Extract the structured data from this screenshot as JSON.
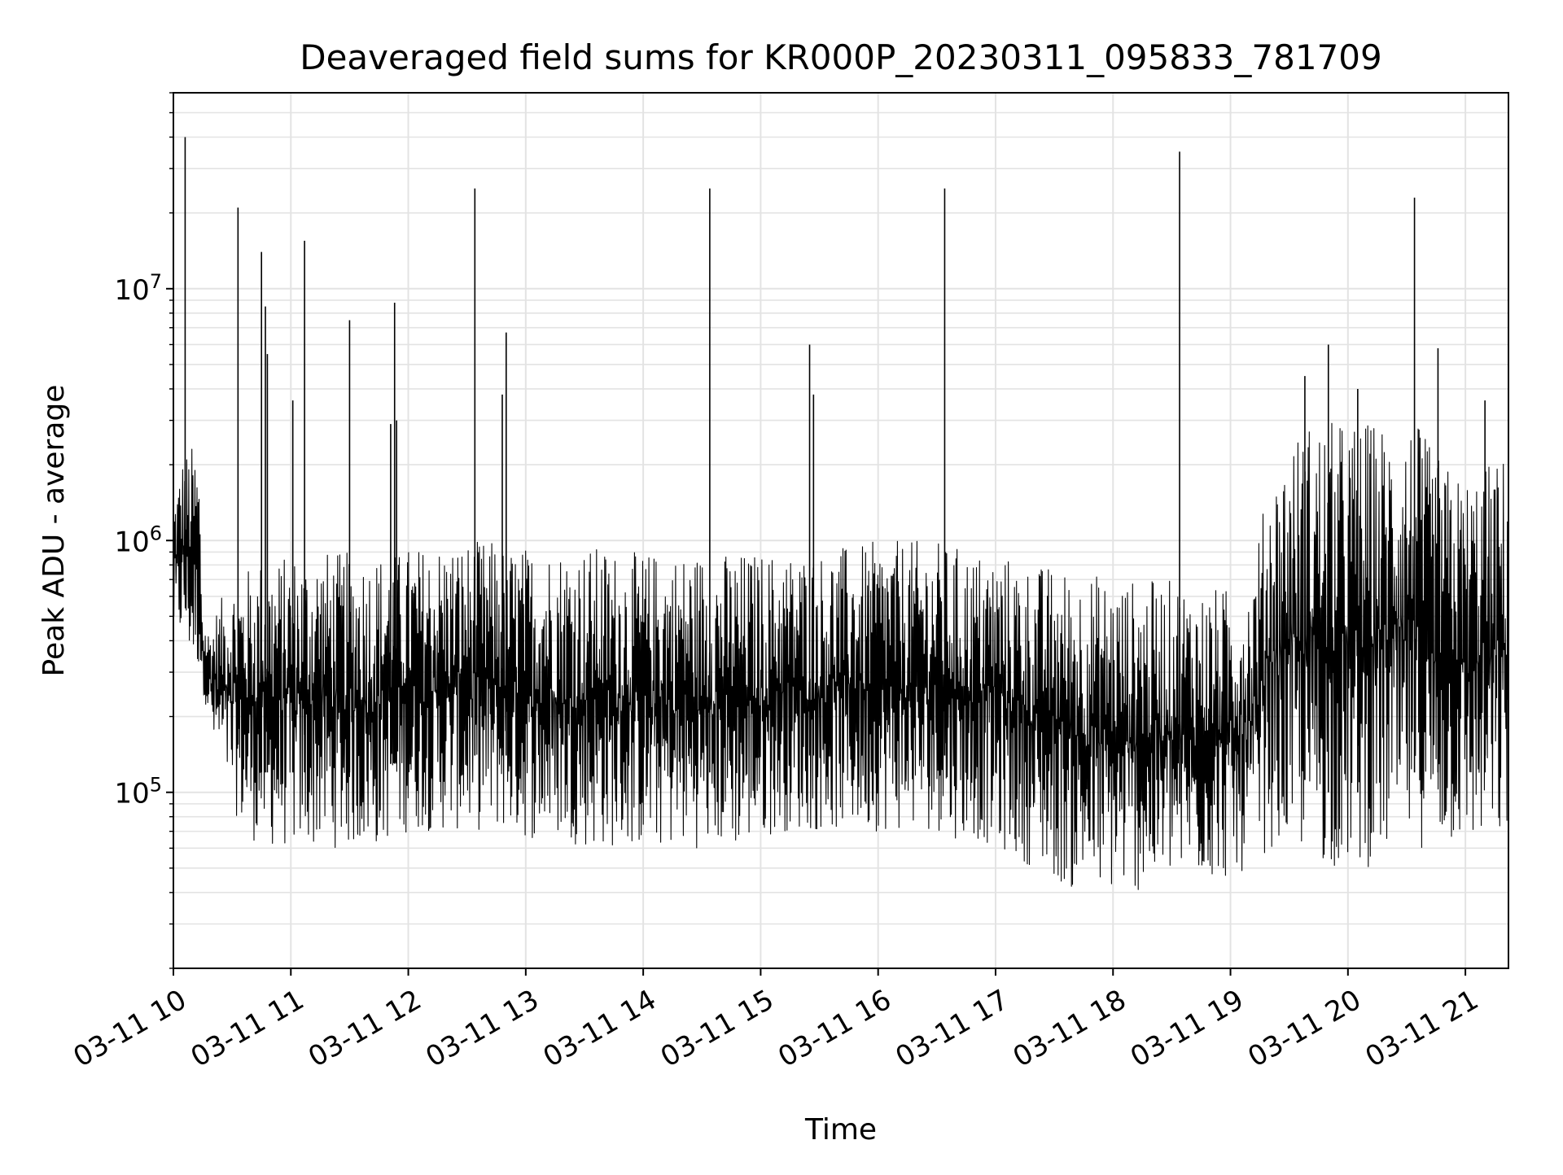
{
  "chart_data": {
    "type": "line",
    "title": "Deaveraged field sums for KR000P_20230311_095833_781709",
    "xlabel": "Time",
    "ylabel": "Peak ADU - average",
    "y_scale": "log",
    "ylim": [
      20000,
      60000000
    ],
    "xlim": [
      "2023-03-11 10:00",
      "2023-03-11 21:22"
    ],
    "grid": "major and minor",
    "line_color": "#000000",
    "grid_color": "#e3e3e3",
    "x_ticks": [
      "03-11 10",
      "03-11 11",
      "03-11 12",
      "03-11 13",
      "03-11 14",
      "03-11 15",
      "03-11 16",
      "03-11 17",
      "03-11 18",
      "03-11 19",
      "03-11 20",
      "03-11 21"
    ],
    "y_ticks": [
      {
        "value": 100000,
        "base": "10",
        "exp": "5"
      },
      {
        "value": 1000000,
        "base": "10",
        "exp": "6"
      },
      {
        "value": 10000000,
        "base": "10",
        "exp": "7"
      }
    ],
    "series": [
      {
        "x": [
          "2023-03-11 10:00",
          "2023-03-11 10:05",
          "2023-03-11 10:10",
          "2023-03-11 10:13",
          "2023-03-11 10:15",
          "2023-03-11 10:18",
          "2023-03-11 10:20",
          "2023-03-11 10:25",
          "2023-03-11 10:30",
          "2023-03-11 10:35",
          "2023-03-11 10:40",
          "2023-03-11 10:45",
          "2023-03-11 10:50",
          "2023-03-11 10:55",
          "2023-03-11 11:00",
          "2023-03-11 11:05",
          "2023-03-11 11:10",
          "2023-03-11 11:15",
          "2023-03-11 11:20",
          "2023-03-11 11:25",
          "2023-03-11 11:30",
          "2023-03-11 11:35",
          "2023-03-11 11:40",
          "2023-03-11 11:45",
          "2023-03-11 11:50",
          "2023-03-11 11:55",
          "2023-03-11 12:00",
          "2023-03-11 12:10",
          "2023-03-11 12:20",
          "2023-03-11 12:30",
          "2023-03-11 12:35",
          "2023-03-11 12:40",
          "2023-03-11 12:45",
          "2023-03-11 12:50",
          "2023-03-11 13:00",
          "2023-03-11 13:10",
          "2023-03-11 13:20",
          "2023-03-11 13:30",
          "2023-03-11 13:40",
          "2023-03-11 13:50",
          "2023-03-11 14:00",
          "2023-03-11 14:10",
          "2023-03-11 14:20",
          "2023-03-11 14:30",
          "2023-03-11 14:35",
          "2023-03-11 14:40",
          "2023-03-11 14:50",
          "2023-03-11 15:00",
          "2023-03-11 15:10",
          "2023-03-11 15:20",
          "2023-03-11 15:25",
          "2023-03-11 15:30",
          "2023-03-11 15:40",
          "2023-03-11 15:50",
          "2023-03-11 16:00",
          "2023-03-11 16:10",
          "2023-03-11 16:20",
          "2023-03-11 16:30",
          "2023-03-11 16:35",
          "2023-03-11 16:40",
          "2023-03-11 16:50",
          "2023-03-11 17:00",
          "2023-03-11 17:10",
          "2023-03-11 17:20",
          "2023-03-11 17:30",
          "2023-03-11 17:40",
          "2023-03-11 17:50",
          "2023-03-11 18:00",
          "2023-03-11 18:10",
          "2023-03-11 18:20",
          "2023-03-11 18:30",
          "2023-03-11 18:35",
          "2023-03-11 18:40",
          "2023-03-11 18:50",
          "2023-03-11 19:00",
          "2023-03-11 19:10",
          "2023-03-11 19:20",
          "2023-03-11 19:25",
          "2023-03-11 19:30",
          "2023-03-11 19:40",
          "2023-03-11 19:50",
          "2023-03-11 20:00",
          "2023-03-11 20:10",
          "2023-03-11 20:20",
          "2023-03-11 20:30",
          "2023-03-11 20:35",
          "2023-03-11 20:40",
          "2023-03-11 20:50",
          "2023-03-11 21:00",
          "2023-03-11 21:10",
          "2023-03-11 21:20"
        ],
        "low": [
          400000,
          400000,
          300000,
          300000,
          250000,
          200000,
          150000,
          120000,
          90000,
          70000,
          65000,
          60000,
          60000,
          60000,
          60000,
          60000,
          60000,
          60000,
          60000,
          60000,
          60000,
          60000,
          60000,
          60000,
          65000,
          65000,
          70000,
          70000,
          70000,
          70000,
          70000,
          70000,
          70000,
          70000,
          65000,
          65000,
          65000,
          60000,
          60000,
          60000,
          60000,
          60000,
          60000,
          60000,
          60000,
          60000,
          60000,
          65000,
          70000,
          70000,
          70000,
          70000,
          70000,
          70000,
          70000,
          70000,
          70000,
          70000,
          70000,
          65000,
          65000,
          60000,
          55000,
          50000,
          45000,
          40000,
          40000,
          40000,
          40000,
          40000,
          45000,
          45000,
          45000,
          45000,
          45000,
          50000,
          60000,
          60000,
          60000,
          55000,
          50000,
          50000,
          50000,
          55000,
          60000,
          60000,
          60000,
          60000,
          60000,
          60000,
          60000
        ],
        "high": [
          1500000,
          2200000,
          2400000,
          2200000,
          500000,
          450000,
          500000,
          600000,
          700000,
          750000,
          800000,
          850000,
          850000,
          850000,
          900000,
          900000,
          900000,
          950000,
          900000,
          900000,
          900000,
          900000,
          900000,
          900000,
          900000,
          900000,
          950000,
          950000,
          1000000,
          1000000,
          1000000,
          1000000,
          1000000,
          950000,
          950000,
          950000,
          950000,
          950000,
          950000,
          900000,
          900000,
          900000,
          900000,
          900000,
          900000,
          900000,
          900000,
          900000,
          900000,
          900000,
          900000,
          900000,
          950000,
          950000,
          1000000,
          1000000,
          1000000,
          1000000,
          950000,
          950000,
          900000,
          900000,
          850000,
          800000,
          800000,
          750000,
          750000,
          700000,
          700000,
          700000,
          700000,
          700000,
          650000,
          650000,
          650000,
          700000,
          1800000,
          2000000,
          2500000,
          3000000,
          3000000,
          3000000,
          3000000,
          3000000,
          3000000,
          3000000,
          2500000,
          2000000,
          1800000,
          2000000,
          2200000
        ]
      }
    ],
    "spikes": [
      {
        "x": "2023-03-11 10:06",
        "y": 40000000
      },
      {
        "x": "2023-03-11 10:33",
        "y": 21000000
      },
      {
        "x": "2023-03-11 10:45",
        "y": 14000000
      },
      {
        "x": "2023-03-11 10:47",
        "y": 8500000
      },
      {
        "x": "2023-03-11 10:48",
        "y": 5500000
      },
      {
        "x": "2023-03-11 11:01",
        "y": 3600000
      },
      {
        "x": "2023-03-11 11:07",
        "y": 15500000
      },
      {
        "x": "2023-03-11 11:30",
        "y": 7500000
      },
      {
        "x": "2023-03-11 11:51",
        "y": 2900000
      },
      {
        "x": "2023-03-11 11:53",
        "y": 8800000
      },
      {
        "x": "2023-03-11 11:54",
        "y": 3000000
      },
      {
        "x": "2023-03-11 12:34",
        "y": 25000000
      },
      {
        "x": "2023-03-11 12:48",
        "y": 3800000
      },
      {
        "x": "2023-03-11 12:50",
        "y": 6700000
      },
      {
        "x": "2023-03-11 14:34",
        "y": 25000000
      },
      {
        "x": "2023-03-11 15:25",
        "y": 6000000
      },
      {
        "x": "2023-03-11 15:27",
        "y": 3800000
      },
      {
        "x": "2023-03-11 16:34",
        "y": 25000000
      },
      {
        "x": "2023-03-11 18:34",
        "y": 35000000
      },
      {
        "x": "2023-03-11 19:38",
        "y": 4500000
      },
      {
        "x": "2023-03-11 19:50",
        "y": 6000000
      },
      {
        "x": "2023-03-11 20:05",
        "y": 4000000
      },
      {
        "x": "2023-03-11 20:34",
        "y": 23000000
      },
      {
        "x": "2023-03-11 20:46",
        "y": 5800000
      },
      {
        "x": "2023-03-11 21:10",
        "y": 3600000
      }
    ]
  }
}
